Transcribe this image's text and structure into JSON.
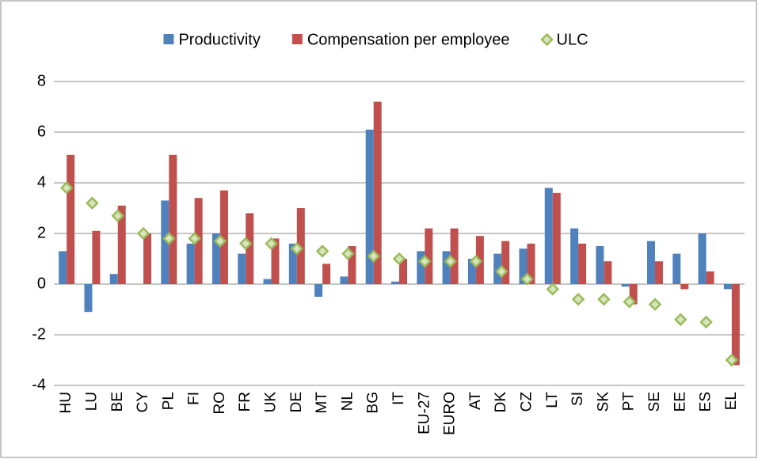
{
  "chart_data": {
    "type": "bar",
    "categories": [
      "HU",
      "LU",
      "BE",
      "CY",
      "PL",
      "FI",
      "RO",
      "FR",
      "UK",
      "DE",
      "MT",
      "NL",
      "BG",
      "IT",
      "EU-27",
      "EURO",
      "AT",
      "DK",
      "CZ",
      "LT",
      "SI",
      "SK",
      "PT",
      "SE",
      "EE",
      "ES",
      "EL"
    ],
    "series": [
      {
        "name": "Productivity",
        "color": "#4f81bd",
        "mark": "bar",
        "values": [
          1.3,
          -1.1,
          0.4,
          0,
          3.3,
          1.6,
          2.0,
          1.2,
          0.2,
          1.6,
          -0.5,
          0.3,
          6.1,
          0.1,
          1.3,
          1.3,
          1.0,
          1.2,
          1.4,
          3.8,
          2.2,
          1.5,
          -0.1,
          1.7,
          1.2,
          2.0,
          -0.2
        ]
      },
      {
        "name": "Compensation per employee",
        "color": "#c0504d",
        "mark": "bar",
        "values": [
          5.1,
          2.1,
          3.1,
          2.0,
          5.1,
          3.4,
          3.7,
          2.8,
          1.8,
          3.0,
          0.8,
          1.5,
          7.2,
          1.0,
          2.2,
          2.2,
          1.9,
          1.7,
          1.6,
          3.6,
          1.6,
          0.9,
          -0.8,
          0.9,
          -0.2,
          0.5,
          -3.2
        ]
      },
      {
        "name": "ULC",
        "color": "#d7e4bd",
        "edge_color": "#9bbb59",
        "mark": "diamond",
        "values": [
          3.8,
          3.2,
          2.7,
          2.0,
          1.8,
          1.8,
          1.7,
          1.6,
          1.6,
          1.4,
          1.3,
          1.2,
          1.1,
          1.0,
          0.9,
          0.9,
          0.9,
          0.5,
          0.2,
          -0.2,
          -0.6,
          -0.6,
          -0.7,
          -0.8,
          -1.4,
          -1.5,
          -3.0
        ]
      }
    ],
    "ylim": [
      -4,
      8
    ],
    "yticks": [
      -4,
      -2,
      0,
      2,
      4,
      6,
      8
    ],
    "grid": true,
    "legend": "top"
  }
}
